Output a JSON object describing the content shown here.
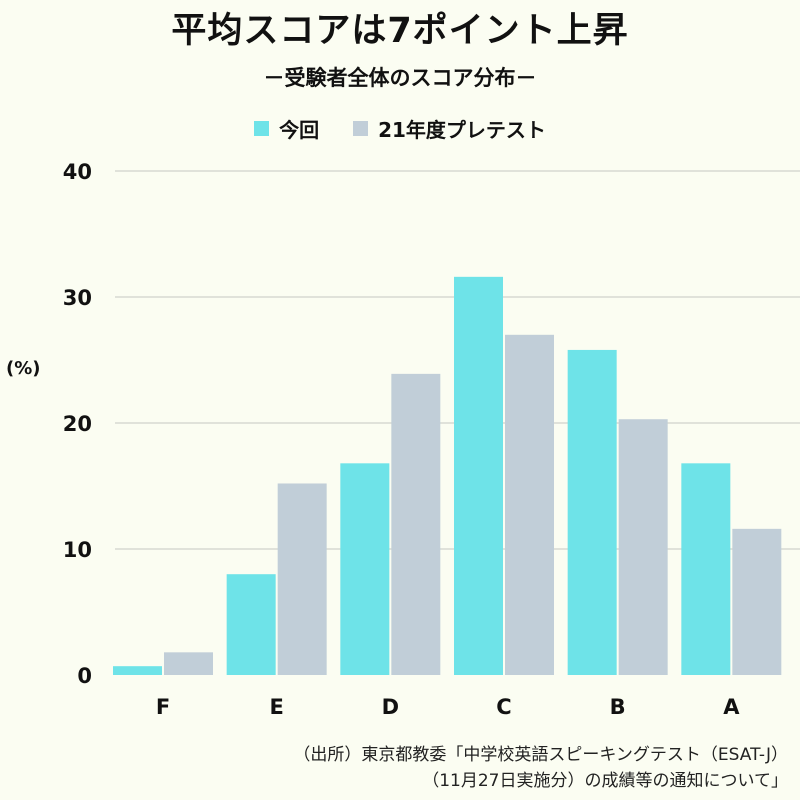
{
  "chart_data": {
    "type": "bar",
    "title": "平均スコアは7ポイント上昇",
    "subtitle": "－受験者全体のスコア分布－",
    "ylabel": "(%)",
    "xlabel": "",
    "categories": [
      "F",
      "E",
      "D",
      "C",
      "B",
      "A"
    ],
    "series": [
      {
        "name": "今回",
        "color": "#6ee3e8",
        "values": [
          0.7,
          8.0,
          16.8,
          31.6,
          25.8,
          16.8
        ]
      },
      {
        "name": "21年度プレテスト",
        "color": "#c1ced8",
        "values": [
          1.8,
          15.2,
          23.9,
          27.0,
          20.3,
          11.6
        ]
      }
    ],
    "ylim": [
      0,
      40
    ],
    "yticks": [
      0,
      10,
      20,
      30,
      40
    ],
    "grid": true,
    "legend_position": "top-center"
  },
  "source": {
    "line1": "（出所）東京都教委「中学校英語スピーキングテスト（ESAT-J）",
    "line2": "（11月27日実施分）の成績等の通知について」"
  },
  "colors": {
    "background": "#fbfdf2",
    "grid": "#cfd3cc"
  }
}
